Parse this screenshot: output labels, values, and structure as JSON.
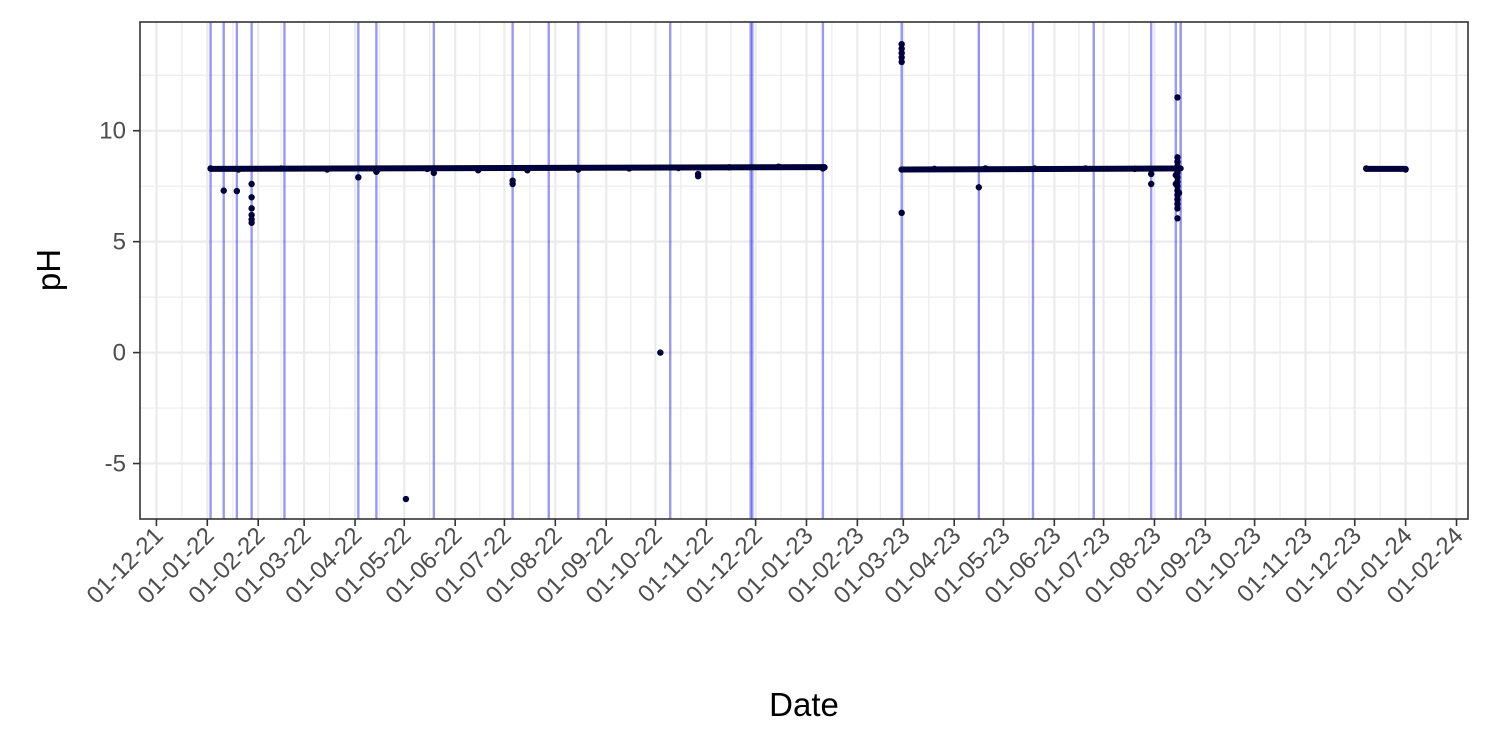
{
  "chart_data": {
    "type": "scatter",
    "title": "",
    "xlabel": "Date",
    "ylabel": "pH",
    "x_date_format": "DD-MM-YY",
    "xlim": [
      "2021-11-21",
      "2024-02-08"
    ],
    "ylim": [
      -7.5,
      14.9
    ],
    "grid": true,
    "y_ticks": [
      -5,
      0,
      5,
      10
    ],
    "x_ticks": [
      {
        "date": "2021-12-01",
        "label": "01-12-21"
      },
      {
        "date": "2022-01-01",
        "label": "01-01-22"
      },
      {
        "date": "2022-02-01",
        "label": "01-02-22"
      },
      {
        "date": "2022-03-01",
        "label": "01-03-22"
      },
      {
        "date": "2022-04-01",
        "label": "01-04-22"
      },
      {
        "date": "2022-05-01",
        "label": "01-05-22"
      },
      {
        "date": "2022-06-01",
        "label": "01-06-22"
      },
      {
        "date": "2022-07-01",
        "label": "01-07-22"
      },
      {
        "date": "2022-08-01",
        "label": "01-08-22"
      },
      {
        "date": "2022-09-01",
        "label": "01-09-22"
      },
      {
        "date": "2022-10-01",
        "label": "01-10-22"
      },
      {
        "date": "2022-11-01",
        "label": "01-11-22"
      },
      {
        "date": "2022-12-01",
        "label": "01-12-22"
      },
      {
        "date": "2023-01-01",
        "label": "01-01-23"
      },
      {
        "date": "2023-02-01",
        "label": "01-02-23"
      },
      {
        "date": "2023-03-01",
        "label": "01-03-23"
      },
      {
        "date": "2023-04-01",
        "label": "01-04-23"
      },
      {
        "date": "2023-05-01",
        "label": "01-05-23"
      },
      {
        "date": "2023-06-01",
        "label": "01-06-23"
      },
      {
        "date": "2023-07-01",
        "label": "01-07-23"
      },
      {
        "date": "2023-08-01",
        "label": "01-08-23"
      },
      {
        "date": "2023-09-01",
        "label": "01-09-23"
      },
      {
        "date": "2023-10-01",
        "label": "01-10-23"
      },
      {
        "date": "2023-11-01",
        "label": "01-11-23"
      },
      {
        "date": "2023-12-01",
        "label": "01-12-23"
      },
      {
        "date": "2024-01-01",
        "label": "01-01-24"
      },
      {
        "date": "2024-02-01",
        "label": "01-02-24"
      }
    ],
    "point_color": "#00003a",
    "vline_color": "#3333ee",
    "vlines": [
      "2022-01-03",
      "2022-01-11",
      "2022-01-19",
      "2022-01-28",
      "2022-02-17",
      "2022-04-03",
      "2022-04-14",
      "2022-05-19",
      "2022-07-06",
      "2022-07-28",
      "2022-08-15",
      "2022-10-10",
      "2022-11-28",
      "2022-11-29",
      "2023-01-11",
      "2023-02-28",
      "2023-04-16",
      "2023-05-19",
      "2023-06-25",
      "2023-07-30",
      "2023-08-14",
      "2023-08-17"
    ],
    "series": [
      {
        "points": [
          [
            "2022-01-03",
            8.3
          ],
          [
            "2022-01-20",
            8.25
          ],
          [
            "2022-02-15",
            8.3
          ],
          [
            "2022-03-15",
            8.25
          ],
          [
            "2022-04-15",
            8.25
          ],
          [
            "2022-05-15",
            8.28
          ],
          [
            "2022-06-15",
            8.22
          ],
          [
            "2022-07-15",
            8.22
          ],
          [
            "2022-08-15",
            8.25
          ],
          [
            "2022-09-15",
            8.3
          ],
          [
            "2022-10-15",
            8.32
          ],
          [
            "2022-11-15",
            8.35
          ],
          [
            "2022-12-15",
            8.38
          ],
          [
            "2023-01-12",
            8.35
          ],
          [
            "2023-02-28",
            8.25
          ],
          [
            "2023-03-20",
            8.28
          ],
          [
            "2023-04-20",
            8.3
          ],
          [
            "2023-05-20",
            8.3
          ],
          [
            "2023-06-20",
            8.3
          ],
          [
            "2023-07-20",
            8.28
          ],
          [
            "2023-08-14",
            8.28
          ],
          [
            "2023-12-08",
            8.3
          ],
          [
            "2024-01-01",
            8.25
          ],
          [
            "2022-01-11",
            7.3
          ],
          [
            "2022-01-19",
            7.28
          ],
          [
            "2022-01-28",
            7.6
          ],
          [
            "2022-01-28",
            7.0
          ],
          [
            "2022-01-28",
            6.5
          ],
          [
            "2022-01-28",
            6.2
          ],
          [
            "2022-01-28",
            6.0
          ],
          [
            "2022-01-28",
            5.85
          ],
          [
            "2022-04-03",
            7.9
          ],
          [
            "2022-04-14",
            8.15
          ],
          [
            "2022-05-02",
            -6.6
          ],
          [
            "2022-05-19",
            8.1
          ],
          [
            "2022-07-06",
            7.75
          ],
          [
            "2022-07-06",
            7.6
          ],
          [
            "2022-10-04",
            0.0
          ],
          [
            "2022-10-27",
            8.05
          ],
          [
            "2022-10-27",
            7.95
          ],
          [
            "2023-01-11",
            8.3
          ],
          [
            "2023-02-28",
            13.9
          ],
          [
            "2023-02-28",
            13.7
          ],
          [
            "2023-02-28",
            13.5
          ],
          [
            "2023-02-28",
            13.3
          ],
          [
            "2023-02-28",
            13.1
          ],
          [
            "2023-02-28",
            6.3
          ],
          [
            "2023-04-16",
            7.45
          ],
          [
            "2023-07-30",
            7.6
          ],
          [
            "2023-07-30",
            8.05
          ],
          [
            "2023-08-15",
            11.5
          ],
          [
            "2023-08-15",
            8.8
          ],
          [
            "2023-08-15",
            8.6
          ],
          [
            "2023-08-15",
            8.4
          ],
          [
            "2023-08-15",
            8.1
          ],
          [
            "2023-08-15",
            7.9
          ],
          [
            "2023-08-15",
            7.7
          ],
          [
            "2023-08-15",
            7.5
          ],
          [
            "2023-08-15",
            7.3
          ],
          [
            "2023-08-15",
            7.1
          ],
          [
            "2023-08-15",
            6.9
          ],
          [
            "2023-08-15",
            6.7
          ],
          [
            "2023-08-15",
            6.5
          ],
          [
            "2023-08-15",
            6.05
          ],
          [
            "2023-08-14",
            8.0
          ],
          [
            "2023-08-14",
            7.6
          ],
          [
            "2023-08-16",
            8.3
          ],
          [
            "2023-08-16",
            7.2
          ]
        ]
      }
    ],
    "continuous_segments": [
      {
        "start": "2022-01-03",
        "end": "2023-01-12",
        "y_start": 8.28,
        "y_end": 8.36
      },
      {
        "start": "2023-02-28",
        "end": "2023-08-17",
        "y_start": 8.25,
        "y_end": 8.3
      },
      {
        "start": "2023-12-08",
        "end": "2024-01-01",
        "y_start": 8.28,
        "y_end": 8.28
      }
    ]
  }
}
